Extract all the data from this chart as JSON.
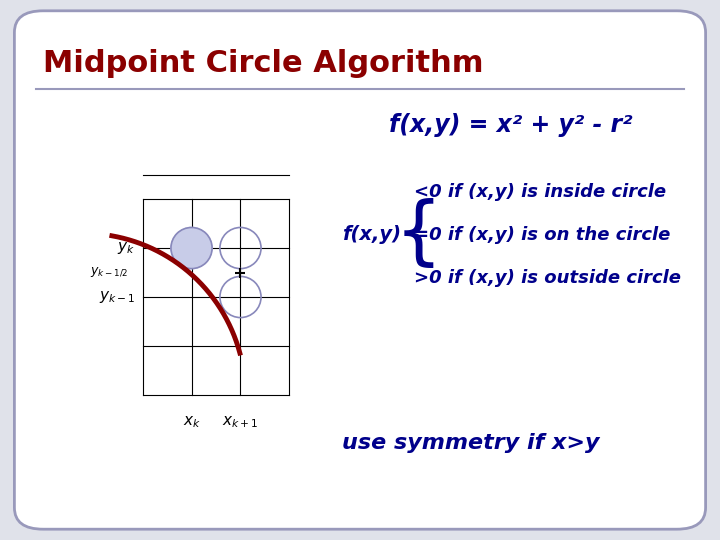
{
  "title": "Midpoint Circle Algorithm",
  "title_color": "#8B0000",
  "title_fontsize": 22,
  "bg_color": "#E0E2EA",
  "border_color": "#9999BB",
  "formula": "f(x,y) = x² + y² - r²",
  "formula_color": "#00008B",
  "formula_fontsize": 17,
  "conditions": [
    "<0 if (x,y) is inside circle",
    "=0 if (x,y) is on the circle",
    ">0 if (x,y) is outside circle"
  ],
  "conditions_color": "#00008B",
  "conditions_fontsize": 13,
  "symmetry_text": "use symmetry if x>y",
  "symmetry_color": "#00008B",
  "symmetry_fontsize": 16,
  "circle_arc_color": "#8B0000",
  "filled_circle_color": "#C8CCE8",
  "empty_circle_color": "#8888BB",
  "grid_color": "#000000",
  "label_color": "#000000",
  "label_fontsize": 12
}
